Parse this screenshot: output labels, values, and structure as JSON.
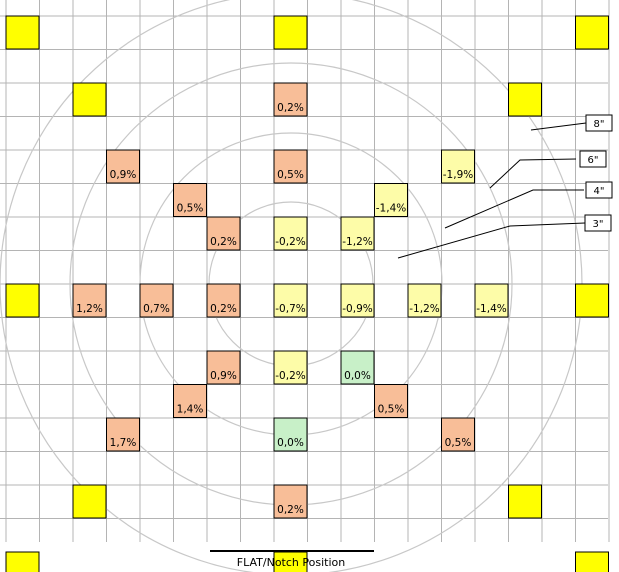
{
  "colors": {
    "grid": "#b4b4b4",
    "circle": "#c8c8c8",
    "border": "#000000",
    "site_positive": "#f8be98",
    "site_negative": "#fdfca8",
    "site_zero": "#c8f0c8",
    "corner_marker": "#ffff00",
    "leader": "#000000"
  },
  "map": {
    "caption": "FLAT/Notch Position",
    "radius_labels": [
      "8\"",
      "6\"",
      "4\"",
      "3\""
    ],
    "markers": [
      {
        "col": 0,
        "row": 0
      },
      {
        "col": 8,
        "row": 0
      },
      {
        "col": 17,
        "row": 0
      },
      {
        "col": 2,
        "row": 2
      },
      {
        "col": 15,
        "row": 2
      },
      {
        "col": 0,
        "row": 8
      },
      {
        "col": 17,
        "row": 8
      },
      {
        "col": 2,
        "row": 14
      },
      {
        "col": 15,
        "row": 14
      },
      {
        "col": 0,
        "row": 16
      },
      {
        "col": 8,
        "row": 16
      },
      {
        "col": 17,
        "row": 16
      }
    ],
    "sites": [
      {
        "col": 8,
        "row": 2,
        "label": "0,2%",
        "tone": "positive"
      },
      {
        "col": 3,
        "row": 4,
        "label": "0,9%",
        "tone": "positive"
      },
      {
        "col": 8,
        "row": 4,
        "label": "0,5%",
        "tone": "positive"
      },
      {
        "col": 13,
        "row": 4,
        "label": "-1,9%",
        "tone": "negative"
      },
      {
        "col": 5,
        "row": 5,
        "label": "0,5%",
        "tone": "positive"
      },
      {
        "col": 11,
        "row": 5,
        "label": "-1,4%",
        "tone": "negative"
      },
      {
        "col": 6,
        "row": 6,
        "label": "0,2%",
        "tone": "positive"
      },
      {
        "col": 8,
        "row": 6,
        "label": "-0,2%",
        "tone": "negative"
      },
      {
        "col": 10,
        "row": 6,
        "label": "-1,2%",
        "tone": "negative"
      },
      {
        "col": 2,
        "row": 8,
        "label": "1,2%",
        "tone": "positive"
      },
      {
        "col": 4,
        "row": 8,
        "label": "0,7%",
        "tone": "positive"
      },
      {
        "col": 6,
        "row": 8,
        "label": "0,2%",
        "tone": "positive"
      },
      {
        "col": 8,
        "row": 8,
        "label": "-0,7%",
        "tone": "negative"
      },
      {
        "col": 10,
        "row": 8,
        "label": "-0,9%",
        "tone": "negative"
      },
      {
        "col": 12,
        "row": 8,
        "label": "-1,2%",
        "tone": "negative"
      },
      {
        "col": 14,
        "row": 8,
        "label": "-1,4%",
        "tone": "negative"
      },
      {
        "col": 6,
        "row": 10,
        "label": "0,9%",
        "tone": "positive"
      },
      {
        "col": 8,
        "row": 10,
        "label": "-0,2%",
        "tone": "negative"
      },
      {
        "col": 10,
        "row": 10,
        "label": "0,0%",
        "tone": "zero"
      },
      {
        "col": 5,
        "row": 11,
        "label": "1,4%",
        "tone": "positive"
      },
      {
        "col": 11,
        "row": 11,
        "label": "0,5%",
        "tone": "positive"
      },
      {
        "col": 3,
        "row": 12,
        "label": "1,7%",
        "tone": "positive"
      },
      {
        "col": 8,
        "row": 12,
        "label": "0,0%",
        "tone": "zero"
      },
      {
        "col": 13,
        "row": 12,
        "label": "0,5%",
        "tone": "positive"
      },
      {
        "col": 8,
        "row": 14,
        "label": "0,2%",
        "tone": "positive"
      }
    ]
  }
}
